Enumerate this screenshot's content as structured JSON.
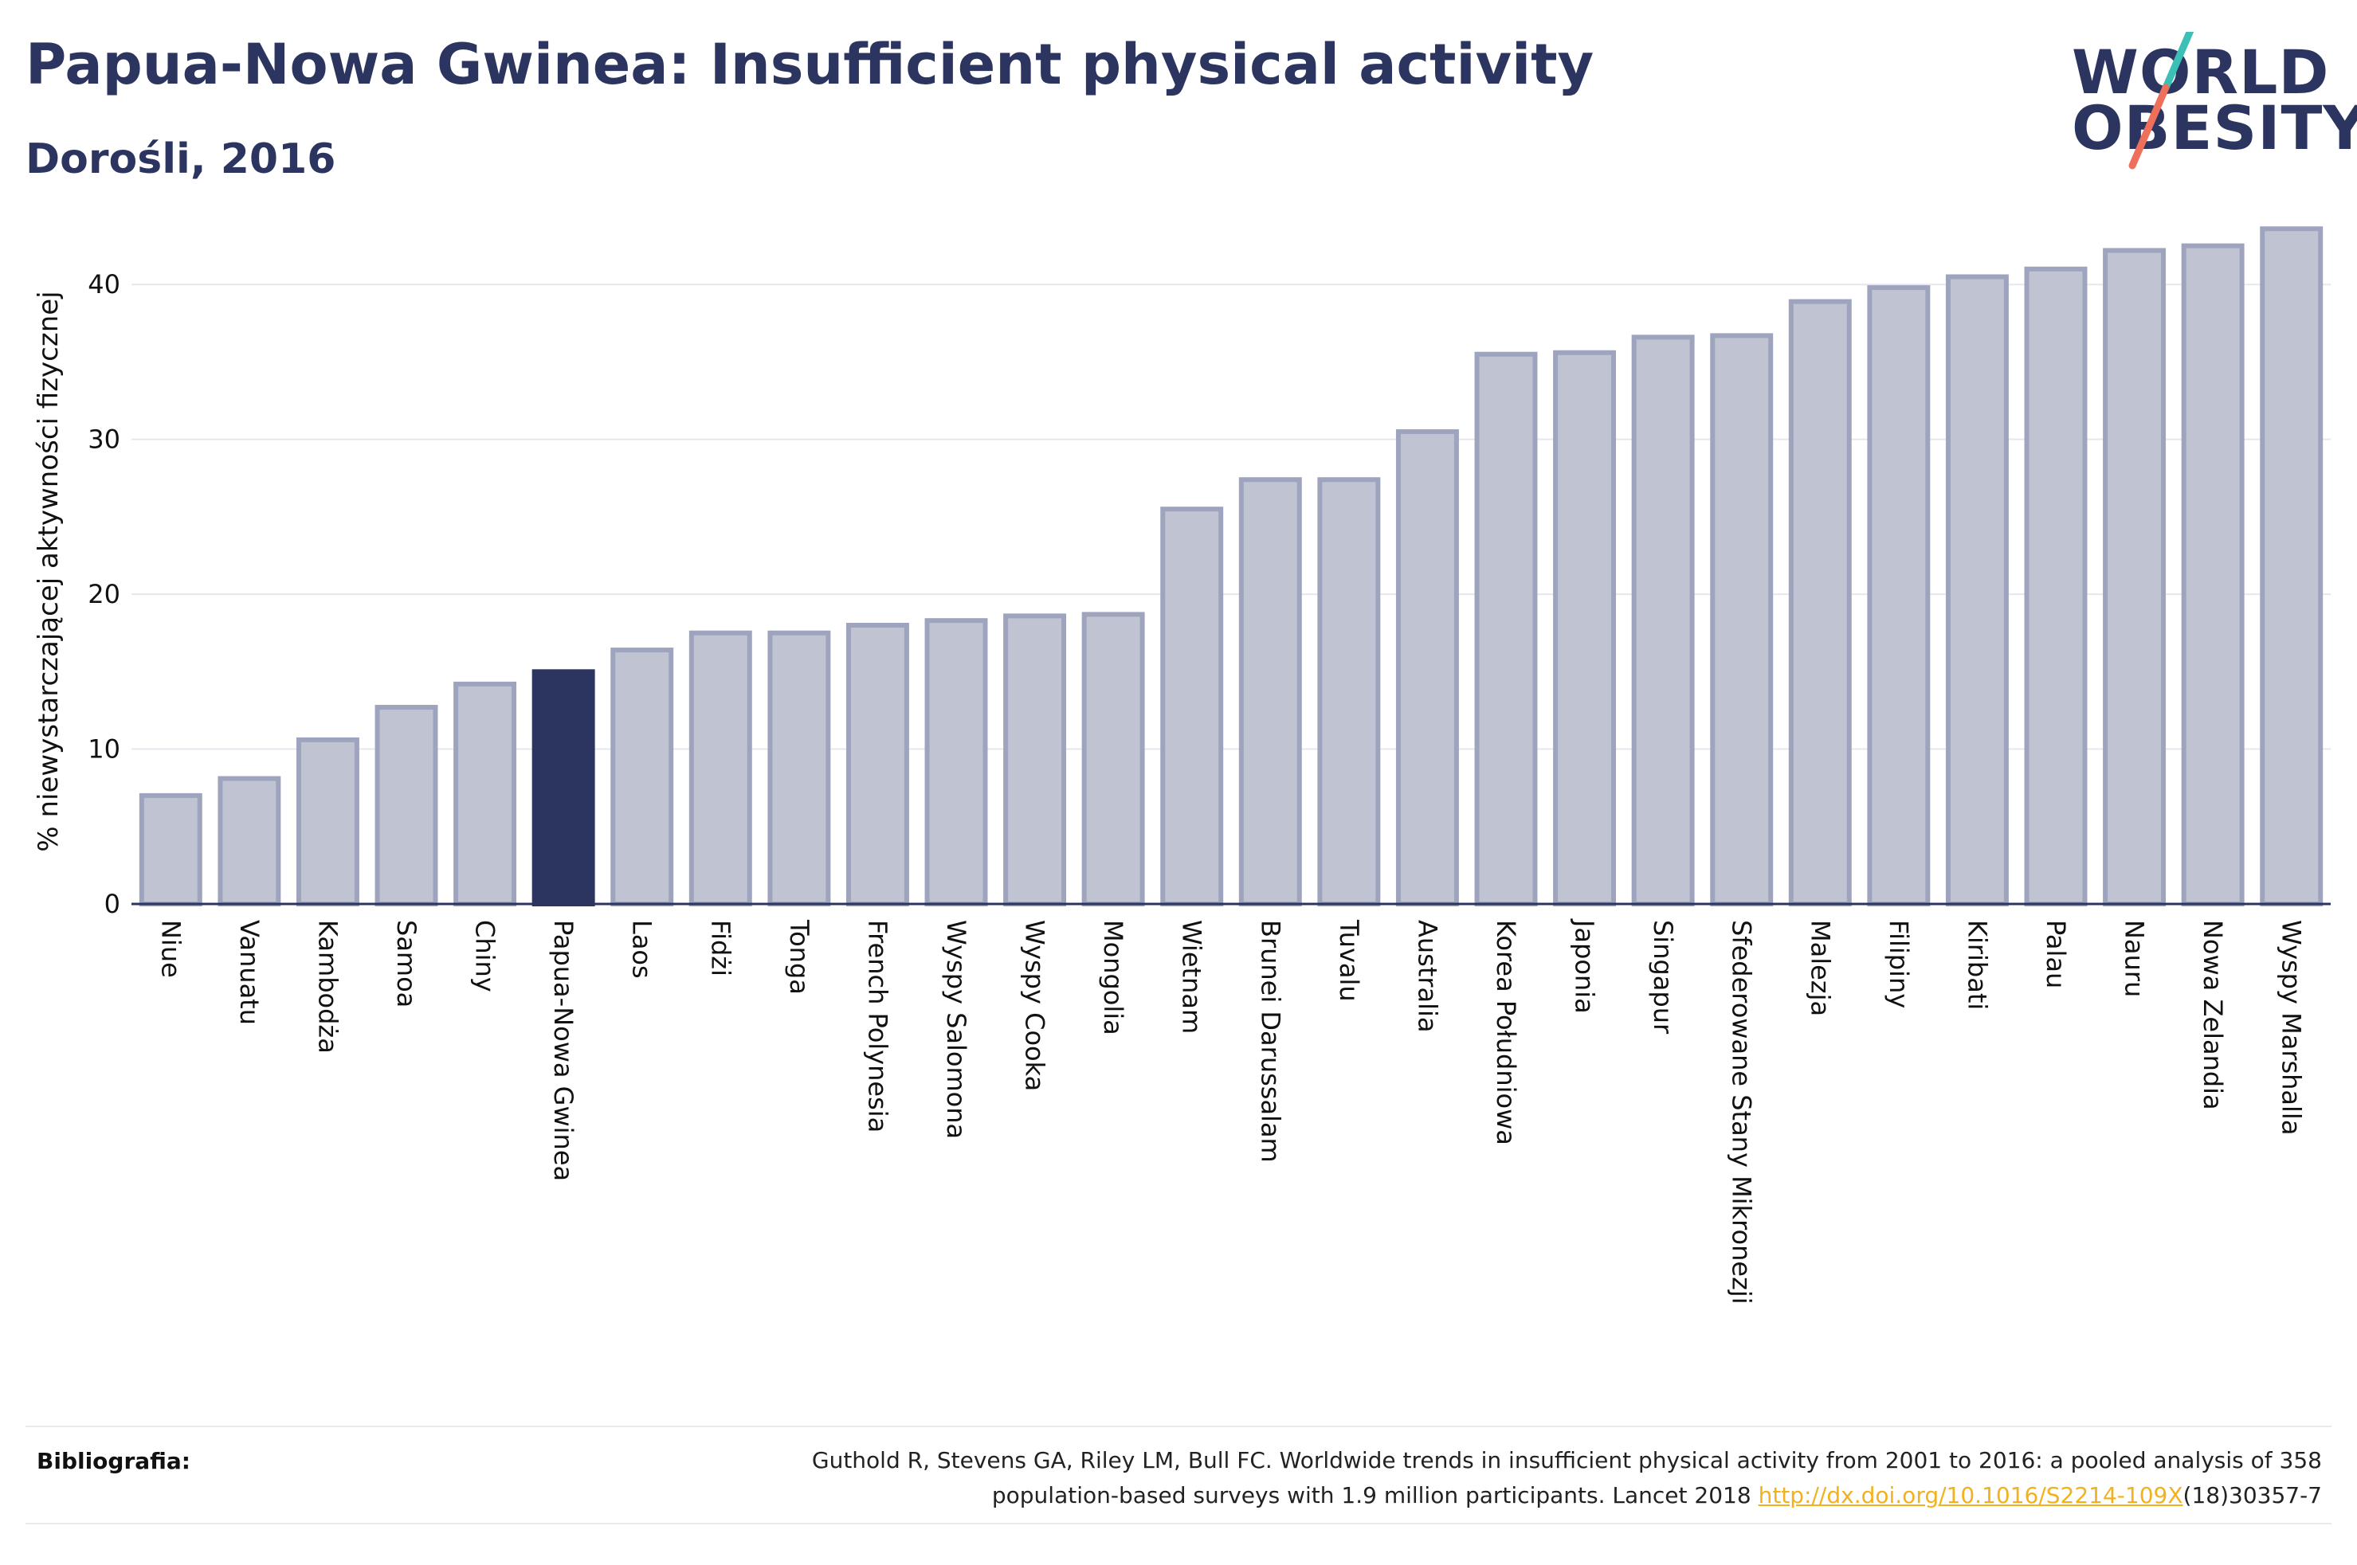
{
  "header": {
    "title": "Papua-Nowa Gwinea: Insufficient physical activity",
    "subtitle": "Dorośli, 2016"
  },
  "logo": {
    "line1": "WORLD",
    "line2": "OBESITY",
    "colors": {
      "text": "#2b3560",
      "slash_top": "#3cbfb7",
      "slash_bottom": "#ee6f5a"
    }
  },
  "colors": {
    "bar_default_fill": "#bfc3d2",
    "bar_default_stroke": "#9ea4bd",
    "bar_highlight": "#2b3560",
    "axis": "#2b3560",
    "grid": "#e6e7ee"
  },
  "chart_data": {
    "type": "bar",
    "ylabel": "% niewystarczającej aktywności fizycznej",
    "xlabel": "",
    "ylim": [
      0,
      45
    ],
    "yticks": [
      0,
      10,
      20,
      30,
      40
    ],
    "grid": true,
    "highlight": "Papua-Nowa Gwinea",
    "categories": [
      "Niue",
      "Vanuatu",
      "Kambodża",
      "Samoa",
      "Chiny",
      "Papua-Nowa Gwinea",
      "Laos",
      "Fidżi",
      "Tonga",
      "French Polynesia",
      "Wyspy Salomona",
      "Wyspy Cooka",
      "Mongolia",
      "Wietnam",
      "Brunei Darussalam",
      "Tuvalu",
      "Australia",
      "Korea Południowa",
      "Japonia",
      "Singapur",
      "Sfederowane Stany Mikronezji",
      "Malezja",
      "Filipiny",
      "Kiribati",
      "Palau",
      "Nauru",
      "Nowa Zelandia",
      "Wyspy Marshalla"
    ],
    "values": [
      7.0,
      8.1,
      10.6,
      12.7,
      14.2,
      15.0,
      16.4,
      17.5,
      17.5,
      18.0,
      18.3,
      18.6,
      18.7,
      25.5,
      27.4,
      27.4,
      30.5,
      35.5,
      35.6,
      36.6,
      36.7,
      38.9,
      39.8,
      40.5,
      41.0,
      42.2,
      42.5,
      43.6
    ]
  },
  "footer": {
    "label": "Bibliografia:",
    "citation_line1": "Guthold R, Stevens GA, Riley LM, Bull FC. Worldwide trends in insufficient physical activity from 2001 to 2016: a pooled analysis of 358",
    "citation_line2_prefix": "population-based surveys with 1.9 million participants. Lancet 2018 ",
    "citation_link": "http://dx.doi.org/10.1016/S2214-109X",
    "citation_line2_suffix": "(18)30357-7"
  }
}
